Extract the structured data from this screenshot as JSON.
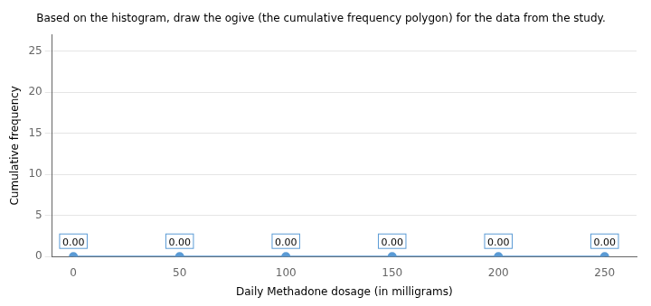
{
  "chart_data": {
    "type": "line",
    "title": "Based on the histogram, draw the ogive (the cumulative frequency polygon) for the data from the study.",
    "xlabel": "Daily Methadone dosage (in milligrams)",
    "ylabel": "Cumulative frequency",
    "x": [
      0,
      50,
      100,
      150,
      200,
      250
    ],
    "values": [
      0.0,
      0.0,
      0.0,
      0.0,
      0.0,
      0.0
    ],
    "value_labels": [
      "0.00",
      "0.00",
      "0.00",
      "0.00",
      "0.00",
      "0.00"
    ],
    "data_labels": true,
    "color": "#5b9bd5",
    "marker": "circle",
    "xlim": [
      -10,
      265
    ],
    "ylim": [
      0,
      27
    ],
    "xticks": [
      0,
      50,
      100,
      150,
      200,
      250
    ],
    "yticks": [
      0,
      5,
      10,
      15,
      20,
      25
    ],
    "grid": "y"
  }
}
